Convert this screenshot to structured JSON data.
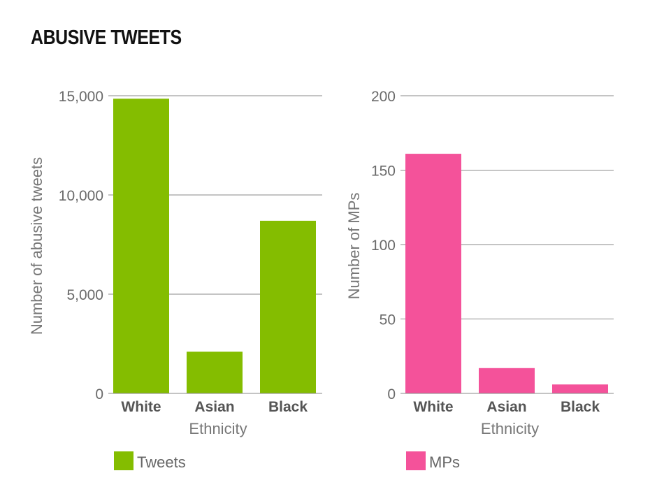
{
  "title": "ABUSIVE TWEETS",
  "chart_data": [
    {
      "type": "bar",
      "categories": [
        "White",
        "Asian",
        "Black"
      ],
      "values": [
        14850,
        2100,
        8700
      ],
      "xlabel": "Ethnicity",
      "ylabel": "Number of abusive tweets",
      "ylim": [
        0,
        15000
      ],
      "yticks": [
        0,
        5000,
        10000,
        15000
      ],
      "ytick_labels": [
        "0",
        "5,000",
        "10,000",
        "15,000"
      ],
      "legend": "Tweets",
      "color": "#84bd00",
      "grid": true
    },
    {
      "type": "bar",
      "categories": [
        "White",
        "Asian",
        "Black"
      ],
      "values": [
        161,
        17,
        6
      ],
      "xlabel": "Ethnicity",
      "ylabel": "Number of MPs",
      "ylim": [
        0,
        200
      ],
      "yticks": [
        0,
        50,
        100,
        150,
        200
      ],
      "ytick_labels": [
        "0",
        "50",
        "100",
        "150",
        "200"
      ],
      "legend": "MPs",
      "color": "#f4529a",
      "grid": true
    }
  ]
}
